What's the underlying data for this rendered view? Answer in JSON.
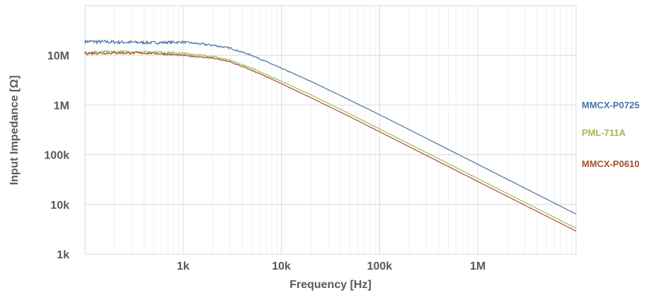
{
  "chart_data": {
    "type": "line",
    "title": "",
    "xlabel": "Frequency [Hz]",
    "ylabel": "Input Impedance [Ω]",
    "x_scale": "log",
    "y_scale": "log",
    "xlim": [
      100,
      10000000
    ],
    "ylim": [
      1000,
      100000000
    ],
    "grid": true,
    "legend_position": "right, labels at line ends",
    "x_ticks": [
      {
        "value": 1000,
        "label": "1k"
      },
      {
        "value": 10000,
        "label": "10k"
      },
      {
        "value": 100000,
        "label": "100k"
      },
      {
        "value": 1000000,
        "label": "1M"
      }
    ],
    "y_ticks": [
      {
        "value": 1000,
        "label": "1k"
      },
      {
        "value": 10000,
        "label": "10k"
      },
      {
        "value": 100000,
        "label": "100k"
      },
      {
        "value": 1000000,
        "label": "1M"
      },
      {
        "value": 10000000,
        "label": "10M"
      }
    ],
    "series": [
      {
        "name": "MMCX-P0725",
        "color": "#4a72a6",
        "x": [
          100,
          200,
          500,
          1000,
          2000,
          3000,
          5000,
          10000,
          20000,
          50000,
          100000,
          1000000,
          10000000
        ],
        "y": [
          19000000,
          18500000,
          18000000,
          18500000,
          16000000,
          14000000,
          10000000,
          5500000,
          3000000,
          1250000,
          640000,
          64000,
          6400
        ]
      },
      {
        "name": "PML-711A",
        "color": "#9bbb59",
        "x": [
          100,
          200,
          500,
          1000,
          2000,
          3000,
          5000,
          10000,
          20000,
          50000,
          100000,
          1000000,
          10000000
        ],
        "y": [
          11500000,
          11800000,
          11800000,
          11000000,
          9500000,
          8000000,
          5500000,
          3000000,
          1600000,
          660000,
          330000,
          33000,
          3300
        ]
      },
      {
        "name": "MMCX-P0610",
        "color": "#a0522d",
        "x": [
          100,
          200,
          500,
          1000,
          2000,
          3000,
          5000,
          10000,
          20000,
          50000,
          100000,
          1000000,
          10000000
        ],
        "y": [
          11000000,
          11200000,
          11000000,
          10000000,
          8800000,
          7400000,
          5000000,
          2700000,
          1400000,
          580000,
          290000,
          29000,
          2900
        ]
      }
    ]
  }
}
